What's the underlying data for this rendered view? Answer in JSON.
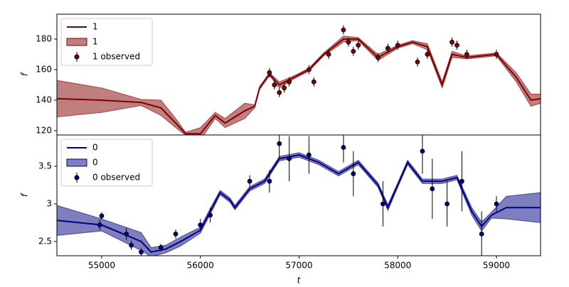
{
  "chart_data": [
    {
      "type": "line",
      "ylabel": "f",
      "xlim": [
        54546,
        59447
      ],
      "ylim": [
        117.2,
        196.3
      ],
      "yticks": [
        120,
        140,
        160,
        180
      ],
      "legend": "upper left",
      "series": [
        {
          "name": "1",
          "color": "#800000",
          "x": [
            54546,
            55000,
            55400,
            55600,
            55750,
            55850,
            56000,
            56150,
            56250,
            56450,
            56550,
            56600,
            56700,
            56800,
            56950,
            57100,
            57250,
            57450,
            57600,
            57800,
            58000,
            58150,
            58300,
            58450,
            58550,
            58700,
            59000,
            59200,
            59350,
            59447
          ],
          "values": [
            141,
            140,
            138.5,
            135,
            125,
            118,
            118,
            130,
            125,
            133,
            136,
            148,
            157,
            150,
            155,
            160,
            170,
            180,
            180,
            168,
            175,
            178,
            175,
            150,
            170,
            168,
            170,
            155,
            140,
            141
          ]
        },
        {
          "name": "1",
          "color": "#800000",
          "x": [
            54546,
            55000,
            55400,
            55600,
            55750,
            55850,
            56000,
            56150,
            56250,
            56450,
            56550,
            56600,
            56700,
            56800,
            56950,
            57100,
            57250,
            57450,
            57600,
            57800,
            58000,
            58150,
            58300,
            58450,
            58550,
            58700,
            59000,
            59200,
            59350,
            59447
          ],
          "lower": [
            129,
            132,
            136.5,
            130,
            122,
            117,
            114,
            128,
            122,
            128,
            135,
            147,
            156,
            148,
            154,
            159,
            169,
            178,
            179,
            166,
            174,
            177,
            173,
            148,
            168,
            167,
            169,
            152,
            136,
            138
          ],
          "upper": [
            153,
            148,
            140.5,
            140,
            128,
            119,
            122,
            132,
            128,
            138,
            137,
            149,
            158,
            152,
            156,
            161,
            171,
            182,
            181,
            170,
            176,
            179,
            177,
            152,
            172,
            169,
            171,
            158,
            144,
            144
          ]
        },
        {
          "name": "1 observed",
          "color": "#800000",
          "x": [
            56700,
            56750,
            56800,
            56850,
            56900,
            57100,
            57150,
            57300,
            57450,
            57500,
            57550,
            57600,
            57800,
            57900,
            58000,
            58200,
            58300,
            58550,
            58600,
            58700,
            59000
          ],
          "values": [
            158,
            150,
            145,
            148,
            152,
            160,
            152,
            170,
            186,
            178,
            172,
            176,
            168,
            174,
            176,
            165,
            170,
            178,
            176,
            170,
            170
          ],
          "errors": [
            3,
            3,
            3,
            3,
            3,
            3,
            3,
            3,
            3,
            3,
            3,
            3,
            3,
            3,
            3,
            3,
            3,
            3,
            3,
            3,
            3
          ]
        }
      ]
    },
    {
      "type": "line",
      "ylabel": "f",
      "xlabel": "t",
      "xlim": [
        54546,
        59447
      ],
      "ylim": [
        2.311,
        3.915
      ],
      "yticks": [
        2.5,
        3.0,
        3.5
      ],
      "xticks": [
        55000,
        56000,
        57000,
        58000,
        59000
      ],
      "legend": "upper left",
      "series": [
        {
          "name": "0",
          "color": "#000080",
          "x": [
            54546,
            55000,
            55400,
            55500,
            55650,
            55800,
            56000,
            56100,
            56200,
            56300,
            56350,
            56500,
            56650,
            56800,
            57000,
            57200,
            57400,
            57600,
            57800,
            57900,
            58000,
            58100,
            58250,
            58450,
            58600,
            58750,
            58850,
            58950,
            59100,
            59447
          ],
          "values": [
            2.78,
            2.72,
            2.5,
            2.36,
            2.4,
            2.5,
            2.65,
            2.9,
            3.15,
            3.05,
            2.95,
            3.2,
            3.3,
            3.6,
            3.65,
            3.55,
            3.4,
            3.55,
            3.25,
            2.95,
            3.25,
            3.55,
            3.3,
            3.3,
            3.35,
            2.9,
            2.7,
            2.85,
            2.95,
            2.95
          ]
        },
        {
          "name": "0",
          "color": "#000080",
          "x": [
            54546,
            55000,
            55400,
            55500,
            55650,
            55800,
            56000,
            56100,
            56200,
            56300,
            56350,
            56500,
            56650,
            56800,
            57000,
            57200,
            57400,
            57600,
            57800,
            57900,
            58000,
            58100,
            58250,
            58450,
            58600,
            58750,
            58850,
            58950,
            59100,
            59447
          ],
          "lower": [
            2.58,
            2.64,
            2.38,
            2.3,
            2.35,
            2.44,
            2.61,
            2.86,
            3.12,
            3.02,
            2.92,
            3.17,
            3.27,
            3.57,
            3.62,
            3.52,
            3.37,
            3.52,
            3.22,
            2.91,
            3.22,
            3.52,
            3.27,
            3.27,
            3.32,
            2.85,
            2.64,
            2.81,
            2.8,
            2.75
          ],
          "upper": [
            2.98,
            2.8,
            2.62,
            2.42,
            2.45,
            2.56,
            2.69,
            2.94,
            3.18,
            3.08,
            2.98,
            3.23,
            3.33,
            3.63,
            3.68,
            3.58,
            3.43,
            3.58,
            3.28,
            2.99,
            3.28,
            3.58,
            3.33,
            3.33,
            3.38,
            2.95,
            2.76,
            2.89,
            3.1,
            3.15
          ]
        },
        {
          "name": "0 observed",
          "color": "#000080",
          "x": [
            54980,
            55000,
            55250,
            55300,
            55400,
            55600,
            55750,
            56000,
            56100,
            56500,
            56700,
            56800,
            56900,
            57100,
            57450,
            57550,
            57850,
            58250,
            58350,
            58500,
            58650,
            58850,
            59000
          ],
          "values": [
            2.72,
            2.84,
            2.6,
            2.45,
            2.36,
            2.42,
            2.6,
            2.72,
            2.85,
            3.3,
            3.3,
            3.8,
            3.6,
            3.65,
            3.75,
            3.4,
            3.0,
            3.7,
            3.2,
            3.0,
            3.3,
            2.6,
            3.0
          ],
          "errors": [
            0.07,
            0.05,
            0.08,
            0.06,
            0.05,
            0.05,
            0.06,
            0.08,
            0.1,
            0.08,
            0.15,
            0.2,
            0.3,
            0.25,
            0.2,
            0.3,
            0.3,
            0.3,
            0.4,
            0.3,
            0.4,
            0.3,
            0.1
          ]
        }
      ]
    }
  ]
}
